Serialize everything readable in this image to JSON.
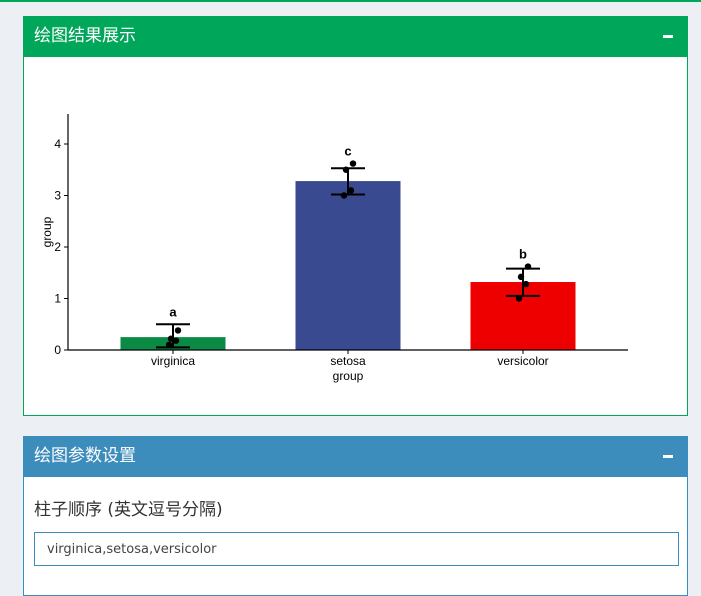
{
  "panel_result": {
    "title": "绘图结果展示"
  },
  "panel_params": {
    "title": "绘图参数设置",
    "bar_order_label": "柱子顺序 (英文逗号分隔)",
    "bar_order_value": "virginica,setosa,versicolor"
  },
  "chart_data": {
    "type": "bar",
    "categories": [
      "virginica",
      "setosa",
      "versicolor"
    ],
    "values": [
      0.25,
      3.28,
      1.32
    ],
    "error_low": [
      0.05,
      3.02,
      1.05
    ],
    "error_high": [
      0.5,
      3.53,
      1.58
    ],
    "points": [
      [
        0.1,
        0.18,
        0.22,
        0.38
      ],
      [
        3.0,
        3.1,
        3.5,
        3.62
      ],
      [
        1.0,
        1.28,
        1.42,
        1.62
      ]
    ],
    "significance_letters": [
      "a",
      "c",
      "b"
    ],
    "colors": [
      "#0a8a45",
      "#3a4a91",
      "#ee0000"
    ],
    "xlabel": "group",
    "ylabel": "group",
    "ylim": [
      0,
      4.6
    ],
    "yticks": [
      0,
      1,
      2,
      3,
      4
    ]
  }
}
